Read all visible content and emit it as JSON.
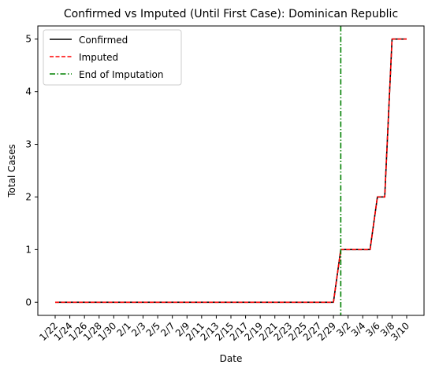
{
  "chart_data": {
    "type": "line",
    "title": "Confirmed vs Imputed (Until First Case): Dominican Republic",
    "xlabel": "Date",
    "ylabel": "Total Cases",
    "ylim": [
      -0.25,
      5.25
    ],
    "yticks": [
      0,
      1,
      2,
      3,
      4,
      5
    ],
    "x": [
      "1/22",
      "1/23",
      "1/24",
      "1/25",
      "1/26",
      "1/27",
      "1/28",
      "1/29",
      "1/30",
      "1/31",
      "2/1",
      "2/2",
      "2/3",
      "2/4",
      "2/5",
      "2/6",
      "2/7",
      "2/8",
      "2/9",
      "2/10",
      "2/11",
      "2/12",
      "2/13",
      "2/14",
      "2/15",
      "2/16",
      "2/17",
      "2/18",
      "2/19",
      "2/20",
      "2/21",
      "2/22",
      "2/23",
      "2/24",
      "2/25",
      "2/26",
      "2/27",
      "2/28",
      "2/29",
      "3/1",
      "3/2",
      "3/3",
      "3/4",
      "3/5",
      "3/6",
      "3/7",
      "3/8",
      "3/9",
      "3/10"
    ],
    "xtick_labels": [
      "1/22",
      "1/24",
      "1/26",
      "1/28",
      "1/30",
      "2/1",
      "2/3",
      "2/5",
      "2/7",
      "2/9",
      "2/11",
      "2/13",
      "2/15",
      "2/17",
      "2/19",
      "2/21",
      "2/23",
      "2/25",
      "2/27",
      "2/29",
      "3/2",
      "3/4",
      "3/6",
      "3/8",
      "3/10"
    ],
    "series": [
      {
        "name": "Confirmed",
        "color": "#000000",
        "style": "solid",
        "values": [
          0,
          0,
          0,
          0,
          0,
          0,
          0,
          0,
          0,
          0,
          0,
          0,
          0,
          0,
          0,
          0,
          0,
          0,
          0,
          0,
          0,
          0,
          0,
          0,
          0,
          0,
          0,
          0,
          0,
          0,
          0,
          0,
          0,
          0,
          0,
          0,
          0,
          0,
          0,
          1,
          1,
          1,
          1,
          1,
          2,
          2,
          5,
          5,
          5
        ]
      },
      {
        "name": "Imputed",
        "color": "#ff0000",
        "style": "dashed",
        "values": [
          0,
          0,
          0,
          0,
          0,
          0,
          0,
          0,
          0,
          0,
          0,
          0,
          0,
          0,
          0,
          0,
          0,
          0,
          0,
          0,
          0,
          0,
          0,
          0,
          0,
          0,
          0,
          0,
          0,
          0,
          0,
          0,
          0,
          0,
          0,
          0,
          0,
          0,
          0,
          1,
          1,
          1,
          1,
          1,
          2,
          2,
          5,
          5,
          5
        ]
      }
    ],
    "vline": {
      "name": "End of Imputation",
      "x": "3/1",
      "color": "#008000",
      "style": "dashdot"
    },
    "legend": "top-left",
    "grid": false
  }
}
